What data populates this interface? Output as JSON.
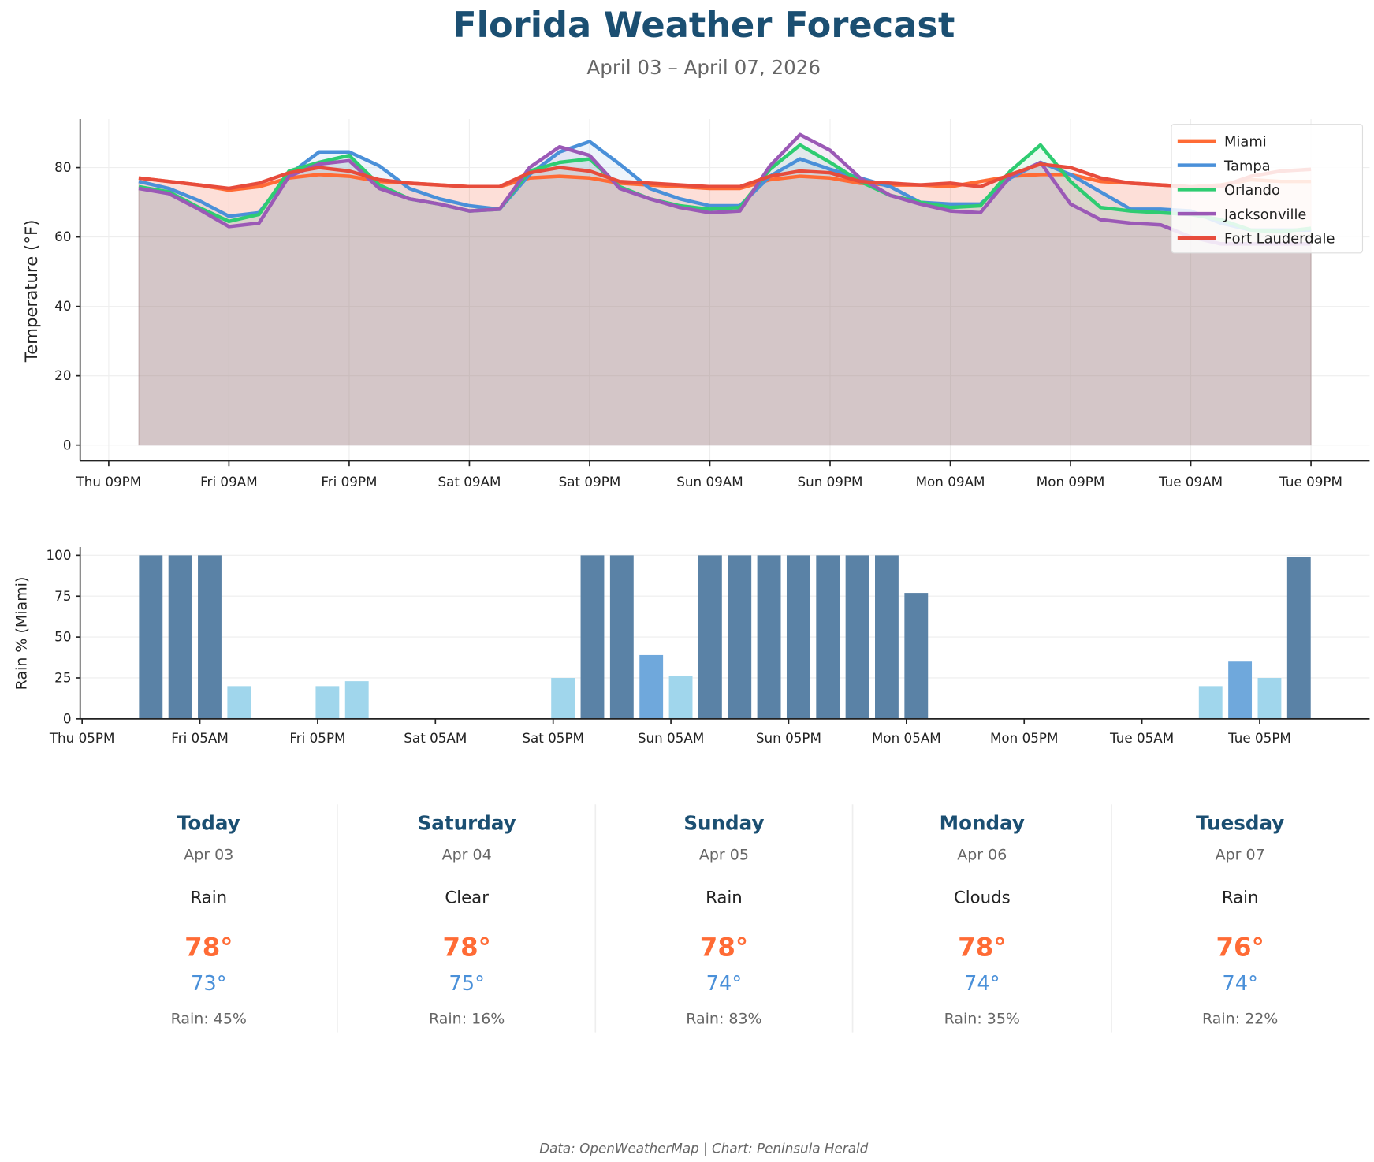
{
  "title": "Florida Weather Forecast",
  "subtitle": "April 03 – April 07, 2026",
  "footer": "Data: OpenWeatherMap | Chart: Peninsula Herald",
  "colors": {
    "title": "#1b4f72",
    "Miami": "#ff6b35",
    "Tampa": "#4a90d9",
    "Orlando": "#2ecc71",
    "Jacksonville": "#9b59b6",
    "Fort Lauderdale": "#e74c3c",
    "rain_high": "#5a82a6",
    "rain_mid": "#6fa8dc",
    "rain_low": "#a0d6ec",
    "high_temp": "#ff6b35",
    "low_temp": "#4a90d9"
  },
  "chart_data": [
    {
      "type": "line",
      "fill": "area-to-zero",
      "ylabel": "Temperature (°F)",
      "ylim": [
        -4.5,
        94
      ],
      "xlim": [
        "2026-04-02 18:09",
        "2026-04-08 02:51"
      ],
      "yticks": [
        0,
        20,
        40,
        60,
        80
      ],
      "xticks": [
        "Thu 09PM",
        "Fri 09AM",
        "Fri 09PM",
        "Sat 09AM",
        "Sat 09PM",
        "Sun 09AM",
        "Sun 09PM",
        "Mon 09AM",
        "Mon 09PM",
        "Tue 09AM",
        "Tue 09PM"
      ],
      "grid": true,
      "legend": "top-right",
      "x": [
        "2026-04-03 00:00",
        "2026-04-03 03:00",
        "2026-04-03 06:00",
        "2026-04-03 09:00",
        "2026-04-03 12:00",
        "2026-04-03 15:00",
        "2026-04-03 18:00",
        "2026-04-03 21:00",
        "2026-04-04 00:00",
        "2026-04-04 03:00",
        "2026-04-04 06:00",
        "2026-04-04 09:00",
        "2026-04-04 12:00",
        "2026-04-04 15:00",
        "2026-04-04 18:00",
        "2026-04-04 21:00",
        "2026-04-05 00:00",
        "2026-04-05 03:00",
        "2026-04-05 06:00",
        "2026-04-05 09:00",
        "2026-04-05 12:00",
        "2026-04-05 15:00",
        "2026-04-05 18:00",
        "2026-04-05 21:00",
        "2026-04-06 00:00",
        "2026-04-06 03:00",
        "2026-04-06 06:00",
        "2026-04-06 09:00",
        "2026-04-06 12:00",
        "2026-04-06 15:00",
        "2026-04-06 18:00",
        "2026-04-06 21:00",
        "2026-04-07 00:00",
        "2026-04-07 03:00",
        "2026-04-07 06:00",
        "2026-04-07 09:00",
        "2026-04-07 12:00",
        "2026-04-07 15:00",
        "2026-04-07 18:00",
        "2026-04-07 21:00"
      ],
      "series": [
        {
          "name": "Miami",
          "values": [
            77,
            76,
            75,
            73.5,
            74.5,
            77,
            78,
            77.5,
            76,
            75.5,
            75,
            74.5,
            74.5,
            77,
            77.5,
            77,
            75.5,
            75,
            74.5,
            74,
            74,
            76.5,
            77.5,
            77,
            75.5,
            75,
            75,
            74.5,
            76,
            77.5,
            78,
            78,
            76,
            75.5,
            75,
            74.5,
            75,
            76.5,
            76,
            76
          ]
        },
        {
          "name": "Tampa",
          "values": [
            76,
            74,
            70.5,
            66,
            67,
            78,
            84.5,
            84.5,
            80.5,
            74,
            71,
            69,
            68,
            78,
            84.5,
            87.5,
            81,
            74,
            71,
            69,
            69,
            77.5,
            82.5,
            79.5,
            77,
            74.5,
            70,
            69.5,
            69.5,
            77,
            81.5,
            78,
            73,
            68,
            68,
            67.5,
            64,
            62,
            62,
            62
          ]
        },
        {
          "name": "Orlando",
          "values": [
            74.5,
            73,
            68.5,
            64.5,
            66.5,
            79,
            81.5,
            83.5,
            75,
            71,
            69.5,
            67.5,
            68,
            79,
            81.5,
            82.5,
            74.5,
            71,
            69,
            68,
            68.5,
            79.5,
            86.5,
            81.5,
            76,
            72,
            70,
            68.5,
            69,
            79,
            86.5,
            76,
            68.5,
            67.5,
            67,
            66.5,
            65,
            62,
            61.5,
            62.5
          ]
        },
        {
          "name": "Jacksonville",
          "values": [
            74,
            72.5,
            68,
            63,
            64,
            77.5,
            81,
            82,
            74,
            71,
            69.5,
            67.5,
            68,
            80,
            86,
            83.5,
            74,
            71,
            68.5,
            67,
            67.5,
            80.5,
            89.5,
            85,
            77,
            72,
            69.5,
            67.5,
            67,
            77.5,
            81.5,
            69.5,
            65,
            64,
            63.5,
            60,
            58,
            58,
            58,
            58
          ]
        },
        {
          "name": "Fort Lauderdale",
          "values": [
            77,
            76,
            75,
            74,
            75.5,
            78.5,
            80,
            79,
            76.5,
            75.5,
            75,
            74.5,
            74.5,
            78.5,
            80,
            79,
            76,
            75.5,
            75,
            74.5,
            74.5,
            77.5,
            79,
            78.5,
            76,
            75.5,
            75,
            75.5,
            74.5,
            78,
            81,
            80,
            77,
            75.5,
            75,
            74.5,
            74.5,
            77.5,
            79,
            79.5
          ]
        }
      ]
    },
    {
      "type": "bar",
      "ylabel": "Rain % (Miami)",
      "ylim": [
        0,
        105
      ],
      "xlim": [
        "2026-04-02 16:48",
        "2026-04-08 04:12"
      ],
      "yticks": [
        0,
        25,
        50,
        75,
        100
      ],
      "xticks": [
        "Thu 05PM",
        "Fri 05AM",
        "Fri 05PM",
        "Sat 05AM",
        "Sat 05PM",
        "Sun 05AM",
        "Sun 05PM",
        "Mon 05AM",
        "Mon 05PM",
        "Tue 05AM",
        "Tue 05PM"
      ],
      "grid": true,
      "values": [
        100,
        100,
        100,
        20,
        0,
        0,
        20,
        23,
        0,
        0,
        0,
        0,
        0,
        0,
        25,
        100,
        100,
        39,
        26,
        100,
        100,
        100,
        100,
        100,
        100,
        100,
        77,
        0,
        0,
        0,
        0,
        0,
        0,
        0,
        0,
        0,
        20,
        35,
        25,
        99
      ]
    }
  ],
  "forecast": [
    {
      "day": "Today",
      "date": "Apr 03",
      "condition": "Rain",
      "high": "78°",
      "low": "73°",
      "rain": "Rain: 45%"
    },
    {
      "day": "Saturday",
      "date": "Apr 04",
      "condition": "Clear",
      "high": "78°",
      "low": "75°",
      "rain": "Rain: 16%"
    },
    {
      "day": "Sunday",
      "date": "Apr 05",
      "condition": "Rain",
      "high": "78°",
      "low": "74°",
      "rain": "Rain: 83%"
    },
    {
      "day": "Monday",
      "date": "Apr 06",
      "condition": "Clouds",
      "high": "78°",
      "low": "74°",
      "rain": "Rain: 35%"
    },
    {
      "day": "Tuesday",
      "date": "Apr 07",
      "condition": "Rain",
      "high": "76°",
      "low": "74°",
      "rain": "Rain: 22%"
    }
  ]
}
